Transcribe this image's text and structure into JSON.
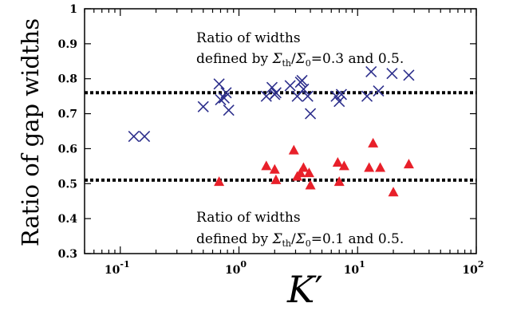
{
  "chart_data": {
    "type": "scatter",
    "title": "",
    "xlabel_main": "K",
    "xlabel_prime": "′",
    "ylabel": "Ratio of gap widths",
    "x_scale": "log",
    "xlim": [
      0.05,
      100
    ],
    "ylim": [
      0.3,
      1.0
    ],
    "x_ticks": [
      0.1,
      1,
      10,
      100
    ],
    "x_tick_labels": [
      {
        "base": "10",
        "exp": "-1"
      },
      {
        "base": "10",
        "exp": "0"
      },
      {
        "base": "10",
        "exp": "1"
      },
      {
        "base": "10",
        "exp": "2"
      }
    ],
    "y_ticks": [
      0.3,
      0.4,
      0.5,
      0.6,
      0.7,
      0.8,
      0.9,
      1.0
    ],
    "y_tick_labels": [
      "0.3",
      "0.4",
      "0.5",
      "0.6",
      "0.7",
      "0.8",
      "0.9",
      "1"
    ],
    "grid": false,
    "reference_lines": [
      0.76,
      0.51
    ],
    "annotations": [
      {
        "line1": "Ratio of widths",
        "line2_prefix": "defined by ",
        "sym": "Σ",
        "sub1": "th",
        "slash": "/",
        "sub2": "0",
        "suffix": "=0.3 and 0.5."
      },
      {
        "line1": "Ratio of widths",
        "line2_prefix": "defined by ",
        "sym": "Σ",
        "sub1": "th",
        "slash": "/",
        "sub2": "0",
        "suffix": "=0.1 and 0.5."
      }
    ],
    "series": [
      {
        "marker": "x",
        "color": "#2d2f8c",
        "x": [
          0.13,
          0.16,
          0.5,
          0.68,
          0.7,
          0.75,
          0.78,
          0.82,
          1.7,
          1.9,
          2.0,
          2.05,
          2.7,
          3.1,
          3.3,
          3.4,
          3.5,
          3.8,
          4.0,
          6.6,
          7.0,
          7.3,
          12.0,
          13.0,
          15.0,
          19.5,
          27.0
        ],
        "y": [
          0.635,
          0.635,
          0.72,
          0.785,
          0.74,
          0.745,
          0.76,
          0.71,
          0.75,
          0.775,
          0.755,
          0.76,
          0.78,
          0.75,
          0.79,
          0.795,
          0.77,
          0.75,
          0.7,
          0.75,
          0.735,
          0.755,
          0.75,
          0.82,
          0.765,
          0.815,
          0.81
        ]
      },
      {
        "marker": "triangle",
        "color": "#e8202a",
        "x": [
          0.68,
          1.7,
          2.0,
          2.05,
          2.9,
          3.1,
          3.3,
          3.5,
          3.9,
          4.0,
          6.8,
          7.0,
          7.7,
          12.5,
          13.5,
          15.5,
          20.0,
          27.0
        ],
        "y": [
          0.505,
          0.55,
          0.54,
          0.51,
          0.595,
          0.52,
          0.53,
          0.545,
          0.53,
          0.495,
          0.56,
          0.505,
          0.55,
          0.545,
          0.615,
          0.545,
          0.475,
          0.555
        ]
      }
    ]
  }
}
